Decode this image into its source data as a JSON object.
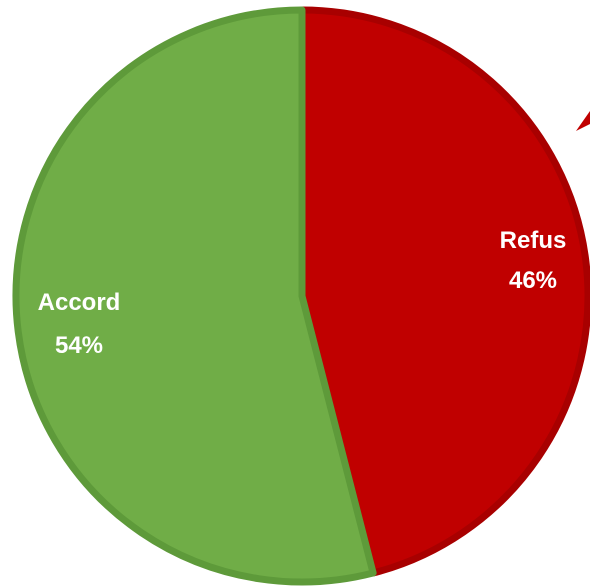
{
  "chart_data": {
    "type": "pie",
    "title": "",
    "slices": [
      {
        "label": "Refus",
        "value": 46,
        "value_label": "46%",
        "color": "#C00000",
        "border_color": "#A80000"
      },
      {
        "label": "Accord",
        "value": 54,
        "value_label": "54%",
        "color": "#70AD47",
        "border_color": "#5E9A3A"
      }
    ],
    "start_angle": "12 o'clock",
    "direction": "clockwise",
    "legend": "none"
  }
}
